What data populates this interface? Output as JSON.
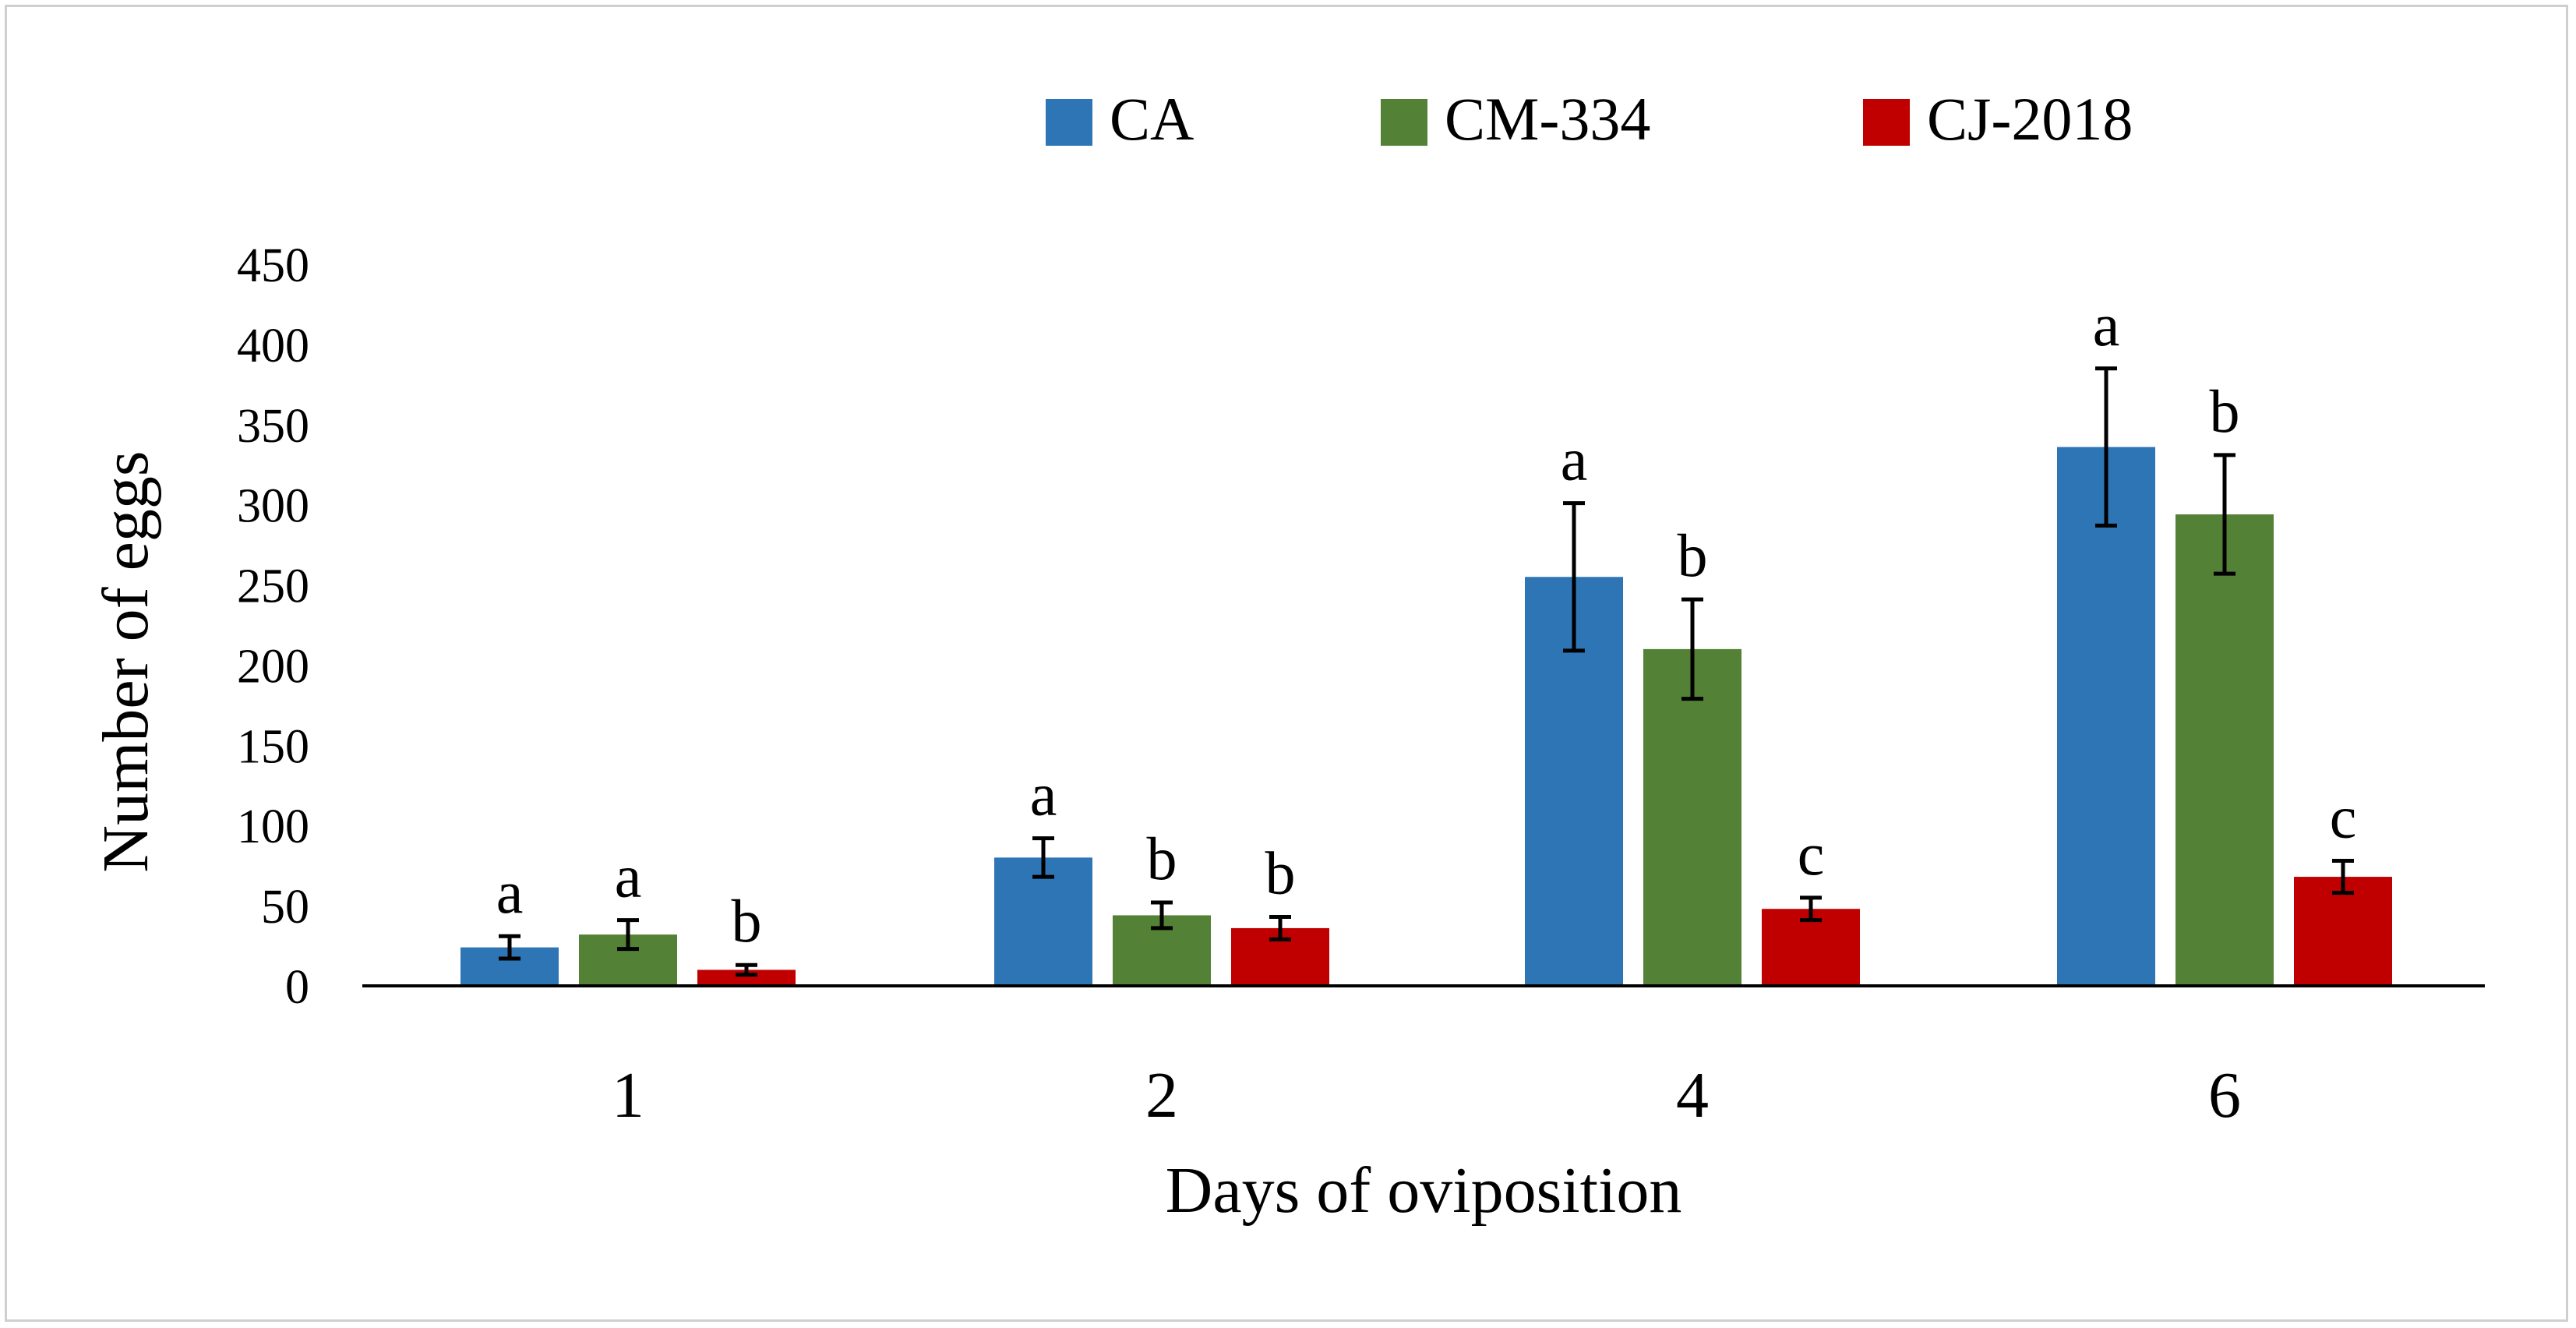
{
  "chart_data": {
    "type": "bar",
    "title": "",
    "xlabel": "Days of oviposition",
    "ylabel": "Number of eggs",
    "categories": [
      "1",
      "2",
      "4",
      "6"
    ],
    "ylim": [
      0,
      450
    ],
    "yticks": [
      "0",
      "50",
      "100",
      "150",
      "200",
      "250",
      "300",
      "350",
      "400",
      "450"
    ],
    "grid": false,
    "legend_position": "top-center",
    "series": [
      {
        "name": "CA",
        "color": "#2e75b6",
        "values": [
          24,
          80,
          255,
          336
        ],
        "errors": [
          7,
          12,
          46,
          49
        ],
        "letters": [
          "a",
          "a",
          "a",
          "a"
        ]
      },
      {
        "name": "CM-334",
        "color": "#538135",
        "values": [
          32,
          44,
          210,
          294
        ],
        "errors": [
          9,
          8,
          31,
          37
        ],
        "letters": [
          "a",
          "b",
          "b",
          "b"
        ]
      },
      {
        "name": "CJ-2018",
        "color": "#c00000",
        "values": [
          10,
          36,
          48,
          68
        ],
        "errors": [
          3,
          7,
          7,
          10
        ],
        "letters": [
          "b",
          "b",
          "c",
          "c"
        ]
      }
    ]
  }
}
